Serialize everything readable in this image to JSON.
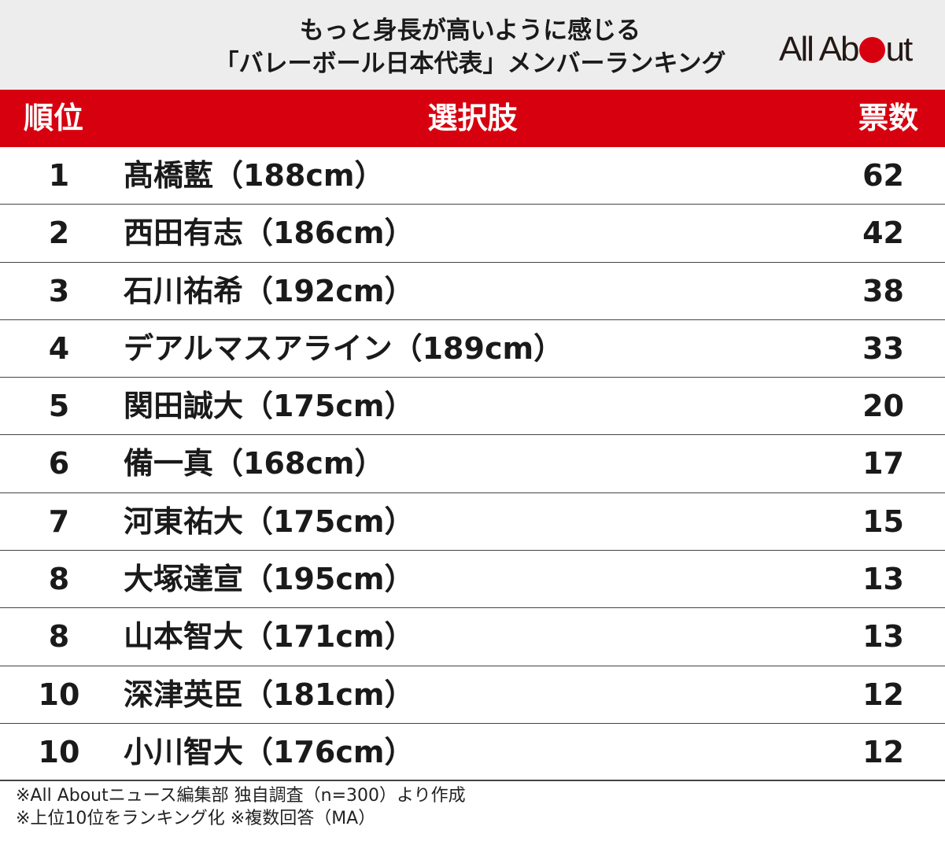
{
  "header": {
    "title_line1": "もっと身長が高いように感じる",
    "title_line2": "「バレーボール日本代表」メンバーランキング",
    "logo": "All About"
  },
  "table": {
    "headers": {
      "rank": "順位",
      "name": "選択肢",
      "votes": "票数"
    },
    "rows": [
      {
        "rank": "1",
        "name": "髙橋藍（188cm）",
        "votes": "62"
      },
      {
        "rank": "2",
        "name": "西田有志（186cm）",
        "votes": "42"
      },
      {
        "rank": "3",
        "name": "石川祐希（192cm）",
        "votes": "38"
      },
      {
        "rank": "4",
        "name": "デアルマスアライン（189cm）",
        "votes": "33"
      },
      {
        "rank": "5",
        "name": "関田誠大（175cm）",
        "votes": "20"
      },
      {
        "rank": "6",
        "name": "備一真（168cm）",
        "votes": "17"
      },
      {
        "rank": "7",
        "name": "河東祐大（175cm）",
        "votes": "15"
      },
      {
        "rank": "8",
        "name": "大塚達宣（195cm）",
        "votes": "13"
      },
      {
        "rank": "8",
        "name": "山本智大（171cm）",
        "votes": "13"
      },
      {
        "rank": "10",
        "name": "深津英臣（181cm）",
        "votes": "12"
      },
      {
        "rank": "10",
        "name": "小川智大（176cm）",
        "votes": "12"
      }
    ]
  },
  "footer": {
    "line1": "※All Aboutニュース編集部 独自調査（n=300）より作成",
    "line2": "※上位10位をランキング化 ※複数回答（MA）"
  },
  "colors": {
    "accent": "#d7000f",
    "header_bg": "#ededed"
  }
}
